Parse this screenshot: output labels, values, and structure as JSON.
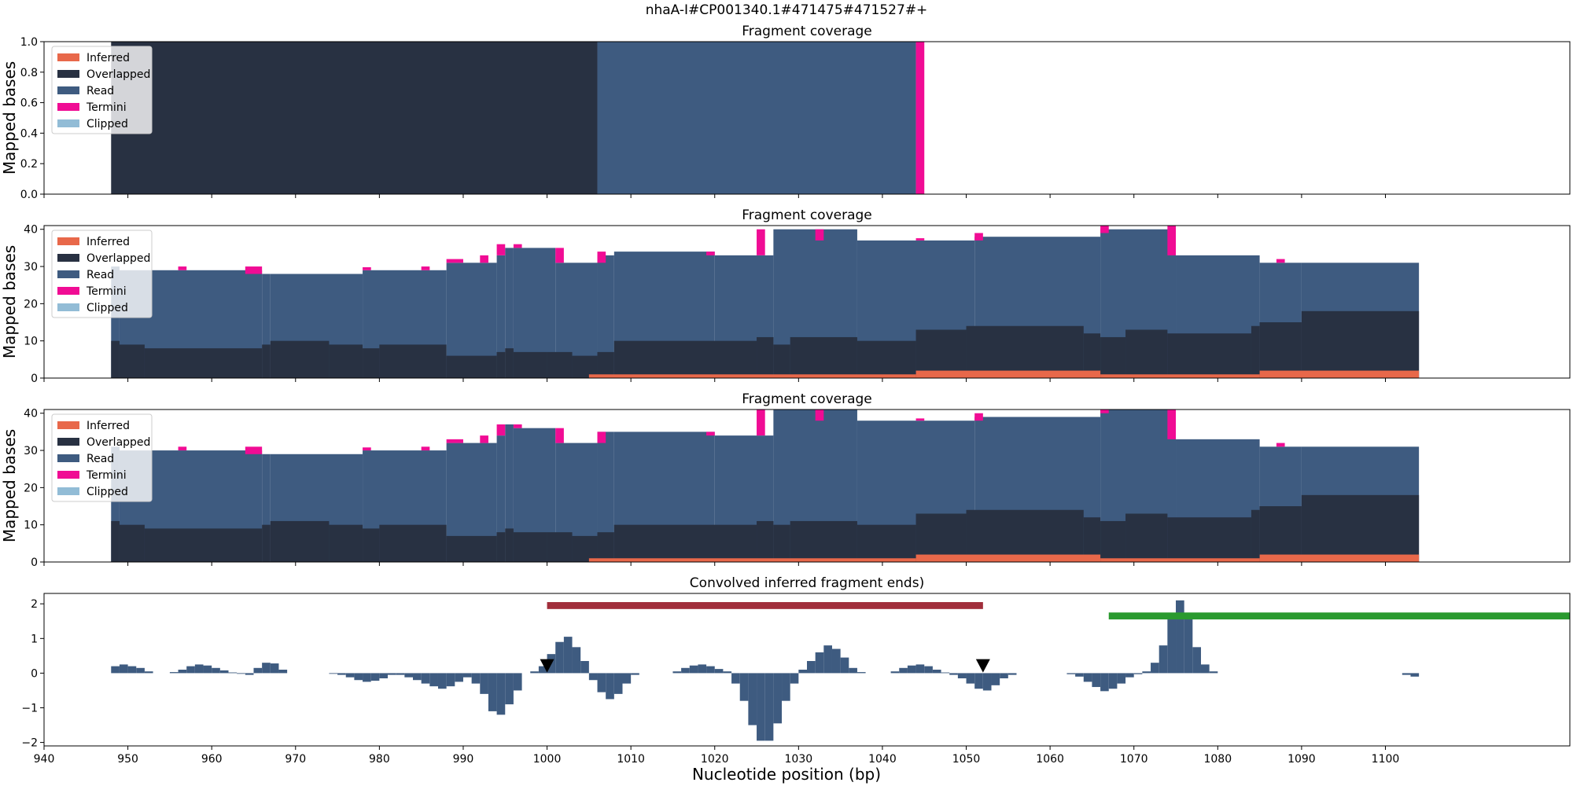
{
  "figure_title": "nhaA-I#CP001340.1#471475#471527#+",
  "x_axis_label": "Nucleotide position (bp)",
  "colors": {
    "Inferred": "#e8684a",
    "Overlapped": "#283142",
    "Read": "#3e5b80",
    "Termini": "#f00c94",
    "Clipped": "#92bcd6",
    "signal": "#3e5b80",
    "red_interval": "#a12e3b",
    "green_interval": "#2a9a2f",
    "marker": "#000000"
  },
  "chart_data": [
    {
      "type": "area",
      "title": "Fragment coverage",
      "ylabel": "Mapped bases",
      "xlim": [
        940,
        1122
      ],
      "ylim": [
        0,
        1.0
      ],
      "yticks": [
        "0.0",
        "0.2",
        "0.4",
        "0.6",
        "0.8",
        "1.0"
      ],
      "legend": [
        "Inferred",
        "Overlapped",
        "Read",
        "Termini",
        "Clipped"
      ],
      "legend_placement": "upper-left",
      "segments": [
        {
          "x0": 948,
          "x1": 1006,
          "series": "Overlapped",
          "y0": 0,
          "y1": 1.0
        },
        {
          "x0": 1006,
          "x1": 1044,
          "series": "Read",
          "y0": 0,
          "y1": 1.0
        },
        {
          "x0": 1044,
          "x1": 1045,
          "series": "Termini",
          "y0": 0,
          "y1": 1.0
        }
      ]
    },
    {
      "type": "area",
      "title": "Fragment coverage",
      "ylabel": "Mapped bases",
      "xlim": [
        940,
        1122
      ],
      "ylim": [
        0,
        41
      ],
      "yticks": [
        "0",
        "10",
        "20",
        "30",
        "40"
      ],
      "legend": [
        "Inferred",
        "Overlapped",
        "Read",
        "Termini",
        "Clipped"
      ],
      "legend_placement": "upper-left",
      "x_positions": [
        948,
        1104
      ],
      "inferred": [
        [
          1005,
          1044,
          1
        ],
        [
          1044,
          1066,
          2
        ],
        [
          1066,
          1085,
          1
        ],
        [
          1085,
          1104,
          2
        ]
      ],
      "overlapped": [
        [
          948,
          949,
          10
        ],
        [
          949,
          952,
          9
        ],
        [
          952,
          966,
          8
        ],
        [
          966,
          967,
          9
        ],
        [
          967,
          974,
          10
        ],
        [
          974,
          978,
          9
        ],
        [
          978,
          980,
          8
        ],
        [
          980,
          988,
          9
        ],
        [
          988,
          994,
          6
        ],
        [
          994,
          995,
          7
        ],
        [
          995,
          996,
          8
        ],
        [
          996,
          1000,
          7
        ],
        [
          1000,
          1003,
          7
        ],
        [
          1003,
          1006,
          6
        ],
        [
          1006,
          1008,
          7
        ],
        [
          1008,
          1025,
          10
        ],
        [
          1025,
          1027,
          11
        ],
        [
          1027,
          1029,
          9
        ],
        [
          1029,
          1037,
          11
        ],
        [
          1037,
          1044,
          10
        ],
        [
          1044,
          1050,
          13
        ],
        [
          1050,
          1064,
          14
        ],
        [
          1064,
          1066,
          12
        ],
        [
          1066,
          1069,
          11
        ],
        [
          1069,
          1074,
          13
        ],
        [
          1074,
          1084,
          12
        ],
        [
          1084,
          1085,
          14
        ],
        [
          1085,
          1090,
          15
        ],
        [
          1090,
          1104,
          18
        ]
      ],
      "total": [
        [
          948,
          949,
          30
        ],
        [
          949,
          966,
          29
        ],
        [
          966,
          967,
          28
        ],
        [
          967,
          978,
          28
        ],
        [
          978,
          988,
          29
        ],
        [
          988,
          994,
          31
        ],
        [
          994,
          995,
          33
        ],
        [
          995,
          996,
          35
        ],
        [
          996,
          1001,
          35
        ],
        [
          1001,
          1006,
          31
        ],
        [
          1006,
          1008,
          33
        ],
        [
          1008,
          1020,
          34
        ],
        [
          1020,
          1027,
          33
        ],
        [
          1027,
          1037,
          40
        ],
        [
          1037,
          1051,
          37
        ],
        [
          1051,
          1066,
          38
        ],
        [
          1066,
          1075,
          40
        ],
        [
          1075,
          1085,
          33
        ],
        [
          1085,
          1090,
          31
        ],
        [
          1090,
          1104,
          31
        ]
      ],
      "termini": [
        [
          956,
          957,
          29,
          30
        ],
        [
          964,
          966,
          28,
          30
        ],
        [
          978,
          979,
          29,
          29.8
        ],
        [
          985,
          986,
          29,
          30
        ],
        [
          988,
          990,
          31,
          32
        ],
        [
          992,
          993,
          31,
          33
        ],
        [
          994,
          995,
          33,
          36
        ],
        [
          996,
          997,
          35,
          36
        ],
        [
          1001,
          1002,
          31,
          35
        ],
        [
          1006,
          1007,
          31,
          34
        ],
        [
          1019,
          1020,
          33,
          34
        ],
        [
          1025,
          1026,
          33,
          40
        ],
        [
          1032,
          1033,
          37,
          40
        ],
        [
          1044,
          1045,
          37,
          37.6
        ],
        [
          1051,
          1052,
          37,
          39
        ],
        [
          1066,
          1067,
          39,
          41
        ],
        [
          1074,
          1075,
          33,
          41
        ],
        [
          1087,
          1088,
          31,
          32
        ]
      ]
    },
    {
      "type": "area",
      "title": "Fragment coverage",
      "ylabel": "Mapped bases",
      "xlim": [
        940,
        1122
      ],
      "ylim": [
        0,
        41
      ],
      "yticks": [
        "0",
        "10",
        "20",
        "30",
        "40"
      ],
      "legend": [
        "Inferred",
        "Overlapped",
        "Read",
        "Termini",
        "Clipped"
      ],
      "legend_placement": "upper-left",
      "x_positions": [
        948,
        1104
      ],
      "inferred": [
        [
          1005,
          1044,
          1
        ],
        [
          1044,
          1066,
          2
        ],
        [
          1066,
          1085,
          1
        ],
        [
          1085,
          1104,
          2
        ]
      ],
      "overlapped": [
        [
          948,
          949,
          11
        ],
        [
          949,
          952,
          10
        ],
        [
          952,
          966,
          9
        ],
        [
          966,
          967,
          10
        ],
        [
          967,
          974,
          11
        ],
        [
          974,
          978,
          10
        ],
        [
          978,
          980,
          9
        ],
        [
          980,
          988,
          10
        ],
        [
          988,
          994,
          7
        ],
        [
          994,
          995,
          8
        ],
        [
          995,
          996,
          9
        ],
        [
          996,
          1000,
          8
        ],
        [
          1000,
          1003,
          8
        ],
        [
          1003,
          1006,
          7
        ],
        [
          1006,
          1008,
          8
        ],
        [
          1008,
          1025,
          10
        ],
        [
          1025,
          1027,
          11
        ],
        [
          1027,
          1029,
          10
        ],
        [
          1029,
          1037,
          11
        ],
        [
          1037,
          1044,
          10
        ],
        [
          1044,
          1050,
          13
        ],
        [
          1050,
          1064,
          14
        ],
        [
          1064,
          1066,
          12
        ],
        [
          1066,
          1069,
          11
        ],
        [
          1069,
          1074,
          13
        ],
        [
          1074,
          1084,
          12
        ],
        [
          1084,
          1085,
          14
        ],
        [
          1085,
          1090,
          15
        ],
        [
          1090,
          1104,
          18
        ]
      ],
      "total": [
        [
          948,
          949,
          31
        ],
        [
          949,
          966,
          30
        ],
        [
          966,
          967,
          29
        ],
        [
          967,
          978,
          29
        ],
        [
          978,
          988,
          30
        ],
        [
          988,
          994,
          32
        ],
        [
          994,
          995,
          34
        ],
        [
          995,
          996,
          37
        ],
        [
          996,
          1001,
          36
        ],
        [
          1001,
          1006,
          32
        ],
        [
          1006,
          1008,
          35
        ],
        [
          1008,
          1020,
          35
        ],
        [
          1020,
          1027,
          34
        ],
        [
          1027,
          1037,
          41
        ],
        [
          1037,
          1051,
          38
        ],
        [
          1051,
          1066,
          39
        ],
        [
          1066,
          1075,
          41
        ],
        [
          1075,
          1085,
          33
        ],
        [
          1085,
          1090,
          31
        ],
        [
          1090,
          1104,
          31
        ]
      ],
      "termini": [
        [
          956,
          957,
          30,
          31
        ],
        [
          964,
          966,
          29,
          31
        ],
        [
          978,
          979,
          30,
          30.8
        ],
        [
          985,
          986,
          30,
          31
        ],
        [
          988,
          990,
          32,
          33
        ],
        [
          992,
          993,
          32,
          34
        ],
        [
          994,
          995,
          34,
          37
        ],
        [
          996,
          997,
          36,
          37
        ],
        [
          1001,
          1002,
          32,
          36
        ],
        [
          1006,
          1007,
          32,
          35
        ],
        [
          1019,
          1020,
          34,
          35
        ],
        [
          1025,
          1026,
          34,
          41
        ],
        [
          1032,
          1033,
          38,
          41
        ],
        [
          1044,
          1045,
          38,
          38.6
        ],
        [
          1051,
          1052,
          38,
          40
        ],
        [
          1066,
          1067,
          40,
          42
        ],
        [
          1074,
          1075,
          33,
          42
        ],
        [
          1087,
          1088,
          31,
          32
        ]
      ]
    },
    {
      "type": "bar",
      "title": "Convolved inferred fragment ends)",
      "ylabel": "",
      "xlabel": "Nucleotide position (bp)",
      "xlim": [
        940,
        1122
      ],
      "ylim": [
        -2.1,
        2.3
      ],
      "xticks": [
        "940",
        "950",
        "960",
        "970",
        "980",
        "990",
        "1000",
        "1010",
        "1020",
        "1030",
        "1040",
        "1050",
        "1060",
        "1070",
        "1080",
        "1090",
        "1100"
      ],
      "yticks": [
        "-2",
        "-1",
        "0",
        "1",
        "2"
      ],
      "signal": [
        [
          948,
          0.2
        ],
        [
          949,
          0.25
        ],
        [
          950,
          0.2
        ],
        [
          951,
          0.15
        ],
        [
          952,
          0.05
        ],
        [
          955,
          0.03
        ],
        [
          956,
          0.1
        ],
        [
          957,
          0.2
        ],
        [
          958,
          0.25
        ],
        [
          959,
          0.22
        ],
        [
          960,
          0.15
        ],
        [
          961,
          0.08
        ],
        [
          962,
          0.02
        ],
        [
          963,
          -0.02
        ],
        [
          964,
          -0.05
        ],
        [
          965,
          0.15
        ],
        [
          966,
          0.3
        ],
        [
          967,
          0.28
        ],
        [
          968,
          0.1
        ],
        [
          974,
          -0.02
        ],
        [
          975,
          -0.05
        ],
        [
          976,
          -0.12
        ],
        [
          977,
          -0.2
        ],
        [
          978,
          -0.25
        ],
        [
          979,
          -0.22
        ],
        [
          980,
          -0.15
        ],
        [
          981,
          -0.05
        ],
        [
          982,
          -0.05
        ],
        [
          983,
          -0.12
        ],
        [
          984,
          -0.2
        ],
        [
          985,
          -0.3
        ],
        [
          986,
          -0.38
        ],
        [
          987,
          -0.45
        ],
        [
          988,
          -0.38
        ],
        [
          989,
          -0.25
        ],
        [
          990,
          -0.12
        ],
        [
          991,
          -0.3
        ],
        [
          992,
          -0.6
        ],
        [
          993,
          -1.1
        ],
        [
          994,
          -1.2
        ],
        [
          995,
          -0.9
        ],
        [
          996,
          -0.5
        ],
        [
          998,
          0.05
        ],
        [
          999,
          0.2
        ],
        [
          1000,
          0.55
        ],
        [
          1001,
          0.9
        ],
        [
          1002,
          1.05
        ],
        [
          1003,
          0.75
        ],
        [
          1004,
          0.35
        ],
        [
          1005,
          -0.2
        ],
        [
          1006,
          -0.55
        ],
        [
          1007,
          -0.75
        ],
        [
          1008,
          -0.6
        ],
        [
          1009,
          -0.3
        ],
        [
          1010,
          -0.05
        ],
        [
          1015,
          0.05
        ],
        [
          1016,
          0.15
        ],
        [
          1017,
          0.22
        ],
        [
          1018,
          0.25
        ],
        [
          1019,
          0.2
        ],
        [
          1020,
          0.12
        ],
        [
          1021,
          0.05
        ],
        [
          1022,
          -0.3
        ],
        [
          1023,
          -0.8
        ],
        [
          1024,
          -1.5
        ],
        [
          1025,
          -1.95
        ],
        [
          1026,
          -1.95
        ],
        [
          1027,
          -1.45
        ],
        [
          1028,
          -0.8
        ],
        [
          1029,
          -0.3
        ],
        [
          1030,
          0.1
        ],
        [
          1031,
          0.35
        ],
        [
          1032,
          0.6
        ],
        [
          1033,
          0.8
        ],
        [
          1034,
          0.7
        ],
        [
          1035,
          0.45
        ],
        [
          1036,
          0.15
        ],
        [
          1037,
          0.03
        ],
        [
          1041,
          0.05
        ],
        [
          1042,
          0.15
        ],
        [
          1043,
          0.22
        ],
        [
          1044,
          0.25
        ],
        [
          1045,
          0.2
        ],
        [
          1046,
          0.1
        ],
        [
          1047,
          0.02
        ],
        [
          1048,
          -0.05
        ],
        [
          1049,
          -0.15
        ],
        [
          1050,
          -0.3
        ],
        [
          1051,
          -0.45
        ],
        [
          1052,
          -0.5
        ],
        [
          1053,
          -0.35
        ],
        [
          1054,
          -0.15
        ],
        [
          1055,
          -0.05
        ],
        [
          1062,
          -0.03
        ],
        [
          1063,
          -0.1
        ],
        [
          1064,
          -0.25
        ],
        [
          1065,
          -0.4
        ],
        [
          1066,
          -0.52
        ],
        [
          1067,
          -0.45
        ],
        [
          1068,
          -0.3
        ],
        [
          1069,
          -0.12
        ],
        [
          1070,
          -0.03
        ],
        [
          1071,
          0.05
        ],
        [
          1072,
          0.3
        ],
        [
          1073,
          0.8
        ],
        [
          1074,
          1.6
        ],
        [
          1075,
          2.1
        ],
        [
          1076,
          1.6
        ],
        [
          1077,
          0.75
        ],
        [
          1078,
          0.25
        ],
        [
          1079,
          0.05
        ],
        [
          1102,
          -0.05
        ],
        [
          1103,
          -0.1
        ]
      ],
      "intervals": [
        {
          "x0": 1000,
          "x1": 1052,
          "y": 1.95,
          "color": "red_interval"
        },
        {
          "x0": 1067,
          "x1": 1122,
          "y": 1.65,
          "color": "green_interval"
        }
      ],
      "markers": [
        {
          "x": 1000,
          "y": 0.2
        },
        {
          "x": 1052,
          "y": 0.2
        }
      ]
    }
  ]
}
